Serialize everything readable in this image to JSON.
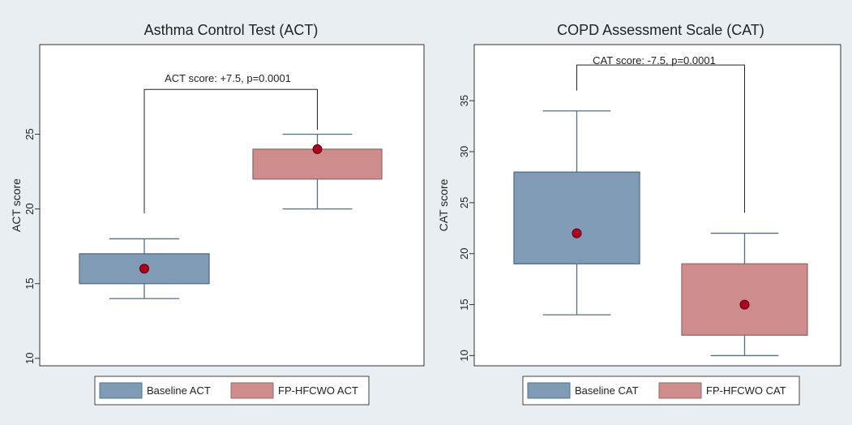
{
  "chart_data": [
    {
      "type": "box",
      "title": "Asthma Control Test (ACT)",
      "xlabel": "",
      "ylabel": "ACT score",
      "ylim": [
        9.5,
        31
      ],
      "yticks": [
        10,
        15,
        20,
        25
      ],
      "grid": false,
      "legend": {
        "position": "bottom",
        "entries": [
          "Baseline ACT",
          "FP-HFCWO ACT"
        ]
      },
      "series": [
        {
          "name": "Baseline ACT",
          "min": 14,
          "q1": 15,
          "median": 16,
          "q3": 17,
          "max": 18,
          "color": "#7f9bb6"
        },
        {
          "name": "FP-HFCWO ACT",
          "min": 20,
          "q1": 22,
          "median": 24,
          "q3": 24,
          "max": 25,
          "color": "#cf8c8c"
        }
      ],
      "annotation": {
        "text": "ACT score: +7.5, p=0.0001",
        "bracket_y": 28,
        "left_end_y": 19.7,
        "right_end_y": 25.3
      }
    },
    {
      "type": "box",
      "title": "COPD Assessment Scale (CAT)",
      "xlabel": "",
      "ylabel": "CAT score",
      "ylim": [
        9,
        40.5
      ],
      "yticks": [
        10,
        15,
        20,
        25,
        30,
        35
      ],
      "grid": false,
      "legend": {
        "position": "bottom",
        "entries": [
          "Baseline CAT",
          "FP-HFCWO CAT"
        ]
      },
      "series": [
        {
          "name": "Baseline CAT",
          "min": 14,
          "q1": 19,
          "median": 22,
          "q3": 28,
          "max": 34,
          "color": "#7f9bb6"
        },
        {
          "name": "FP-HFCWO CAT",
          "min": 10,
          "q1": 12,
          "median": 15,
          "q3": 19,
          "max": 22,
          "color": "#cf8c8c"
        }
      ],
      "annotation": {
        "text": "CAT score: -7.5, p=0.0001",
        "bracket_y": 38.5,
        "left_end_y": 36,
        "right_end_y": 24
      }
    }
  ],
  "colors": {
    "background": "#e9eef2",
    "plot_area": "#ffffff",
    "median_marker": "#b0001e",
    "whisker": "#50708a"
  }
}
